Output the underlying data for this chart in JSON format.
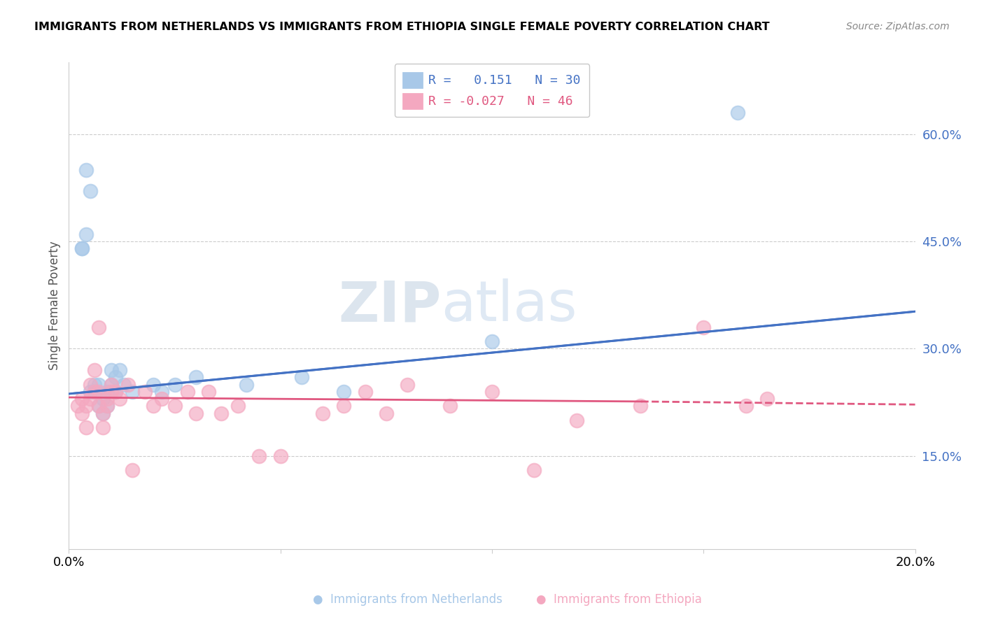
{
  "title": "IMMIGRANTS FROM NETHERLANDS VS IMMIGRANTS FROM ETHIOPIA SINGLE FEMALE POVERTY CORRELATION CHART",
  "source": "Source: ZipAtlas.com",
  "ylabel": "Single Female Poverty",
  "right_yticks": [
    "60.0%",
    "45.0%",
    "30.0%",
    "15.0%"
  ],
  "right_ytick_vals": [
    0.6,
    0.45,
    0.3,
    0.15
  ],
  "xlim": [
    0.0,
    0.2
  ],
  "ylim": [
    0.02,
    0.7
  ],
  "netherlands_color": "#a8c8e8",
  "ethiopia_color": "#f4a8c0",
  "trendline_nl_color": "#4472c4",
  "trendline_et_color": "#e05880",
  "watermark_zip": "ZIP",
  "watermark_atlas": "atlas",
  "nl_x": [
    0.004,
    0.005,
    0.006,
    0.007,
    0.008,
    0.009,
    0.01,
    0.011,
    0.012,
    0.003,
    0.004,
    0.005,
    0.006,
    0.007,
    0.003,
    0.008,
    0.009,
    0.01,
    0.011,
    0.013,
    0.015,
    0.02,
    0.022,
    0.025,
    0.03,
    0.042,
    0.055,
    0.065,
    0.1,
    0.158
  ],
  "nl_y": [
    0.55,
    0.52,
    0.24,
    0.25,
    0.23,
    0.22,
    0.27,
    0.26,
    0.27,
    0.44,
    0.46,
    0.24,
    0.25,
    0.22,
    0.44,
    0.21,
    0.24,
    0.25,
    0.24,
    0.25,
    0.24,
    0.25,
    0.24,
    0.25,
    0.26,
    0.25,
    0.26,
    0.24,
    0.31,
    0.63
  ],
  "et_x": [
    0.002,
    0.003,
    0.003,
    0.004,
    0.004,
    0.005,
    0.005,
    0.006,
    0.006,
    0.007,
    0.007,
    0.007,
    0.008,
    0.008,
    0.009,
    0.009,
    0.01,
    0.01,
    0.011,
    0.012,
    0.014,
    0.015,
    0.018,
    0.02,
    0.022,
    0.025,
    0.028,
    0.03,
    0.033,
    0.036,
    0.04,
    0.045,
    0.05,
    0.06,
    0.065,
    0.07,
    0.075,
    0.08,
    0.09,
    0.1,
    0.11,
    0.12,
    0.135,
    0.15,
    0.16,
    0.165
  ],
  "et_y": [
    0.22,
    0.23,
    0.21,
    0.22,
    0.19,
    0.25,
    0.23,
    0.27,
    0.24,
    0.24,
    0.22,
    0.33,
    0.21,
    0.19,
    0.23,
    0.22,
    0.25,
    0.24,
    0.24,
    0.23,
    0.25,
    0.13,
    0.24,
    0.22,
    0.23,
    0.22,
    0.24,
    0.21,
    0.24,
    0.21,
    0.22,
    0.15,
    0.15,
    0.21,
    0.22,
    0.24,
    0.21,
    0.25,
    0.22,
    0.24,
    0.13,
    0.2,
    0.22,
    0.33,
    0.22,
    0.23
  ],
  "trendline_nl_x0": 0.0,
  "trendline_nl_y0": 0.237,
  "trendline_nl_x1": 0.2,
  "trendline_nl_y1": 0.352,
  "trendline_et_x0": 0.0,
  "trendline_et_y0": 0.232,
  "trendline_et_x1": 0.165,
  "trendline_et_y1": 0.225,
  "trendline_et_dash_x0": 0.165,
  "trendline_et_dash_y0": 0.225,
  "trendline_et_dash_x1": 0.2,
  "trendline_et_dash_y1": 0.222
}
